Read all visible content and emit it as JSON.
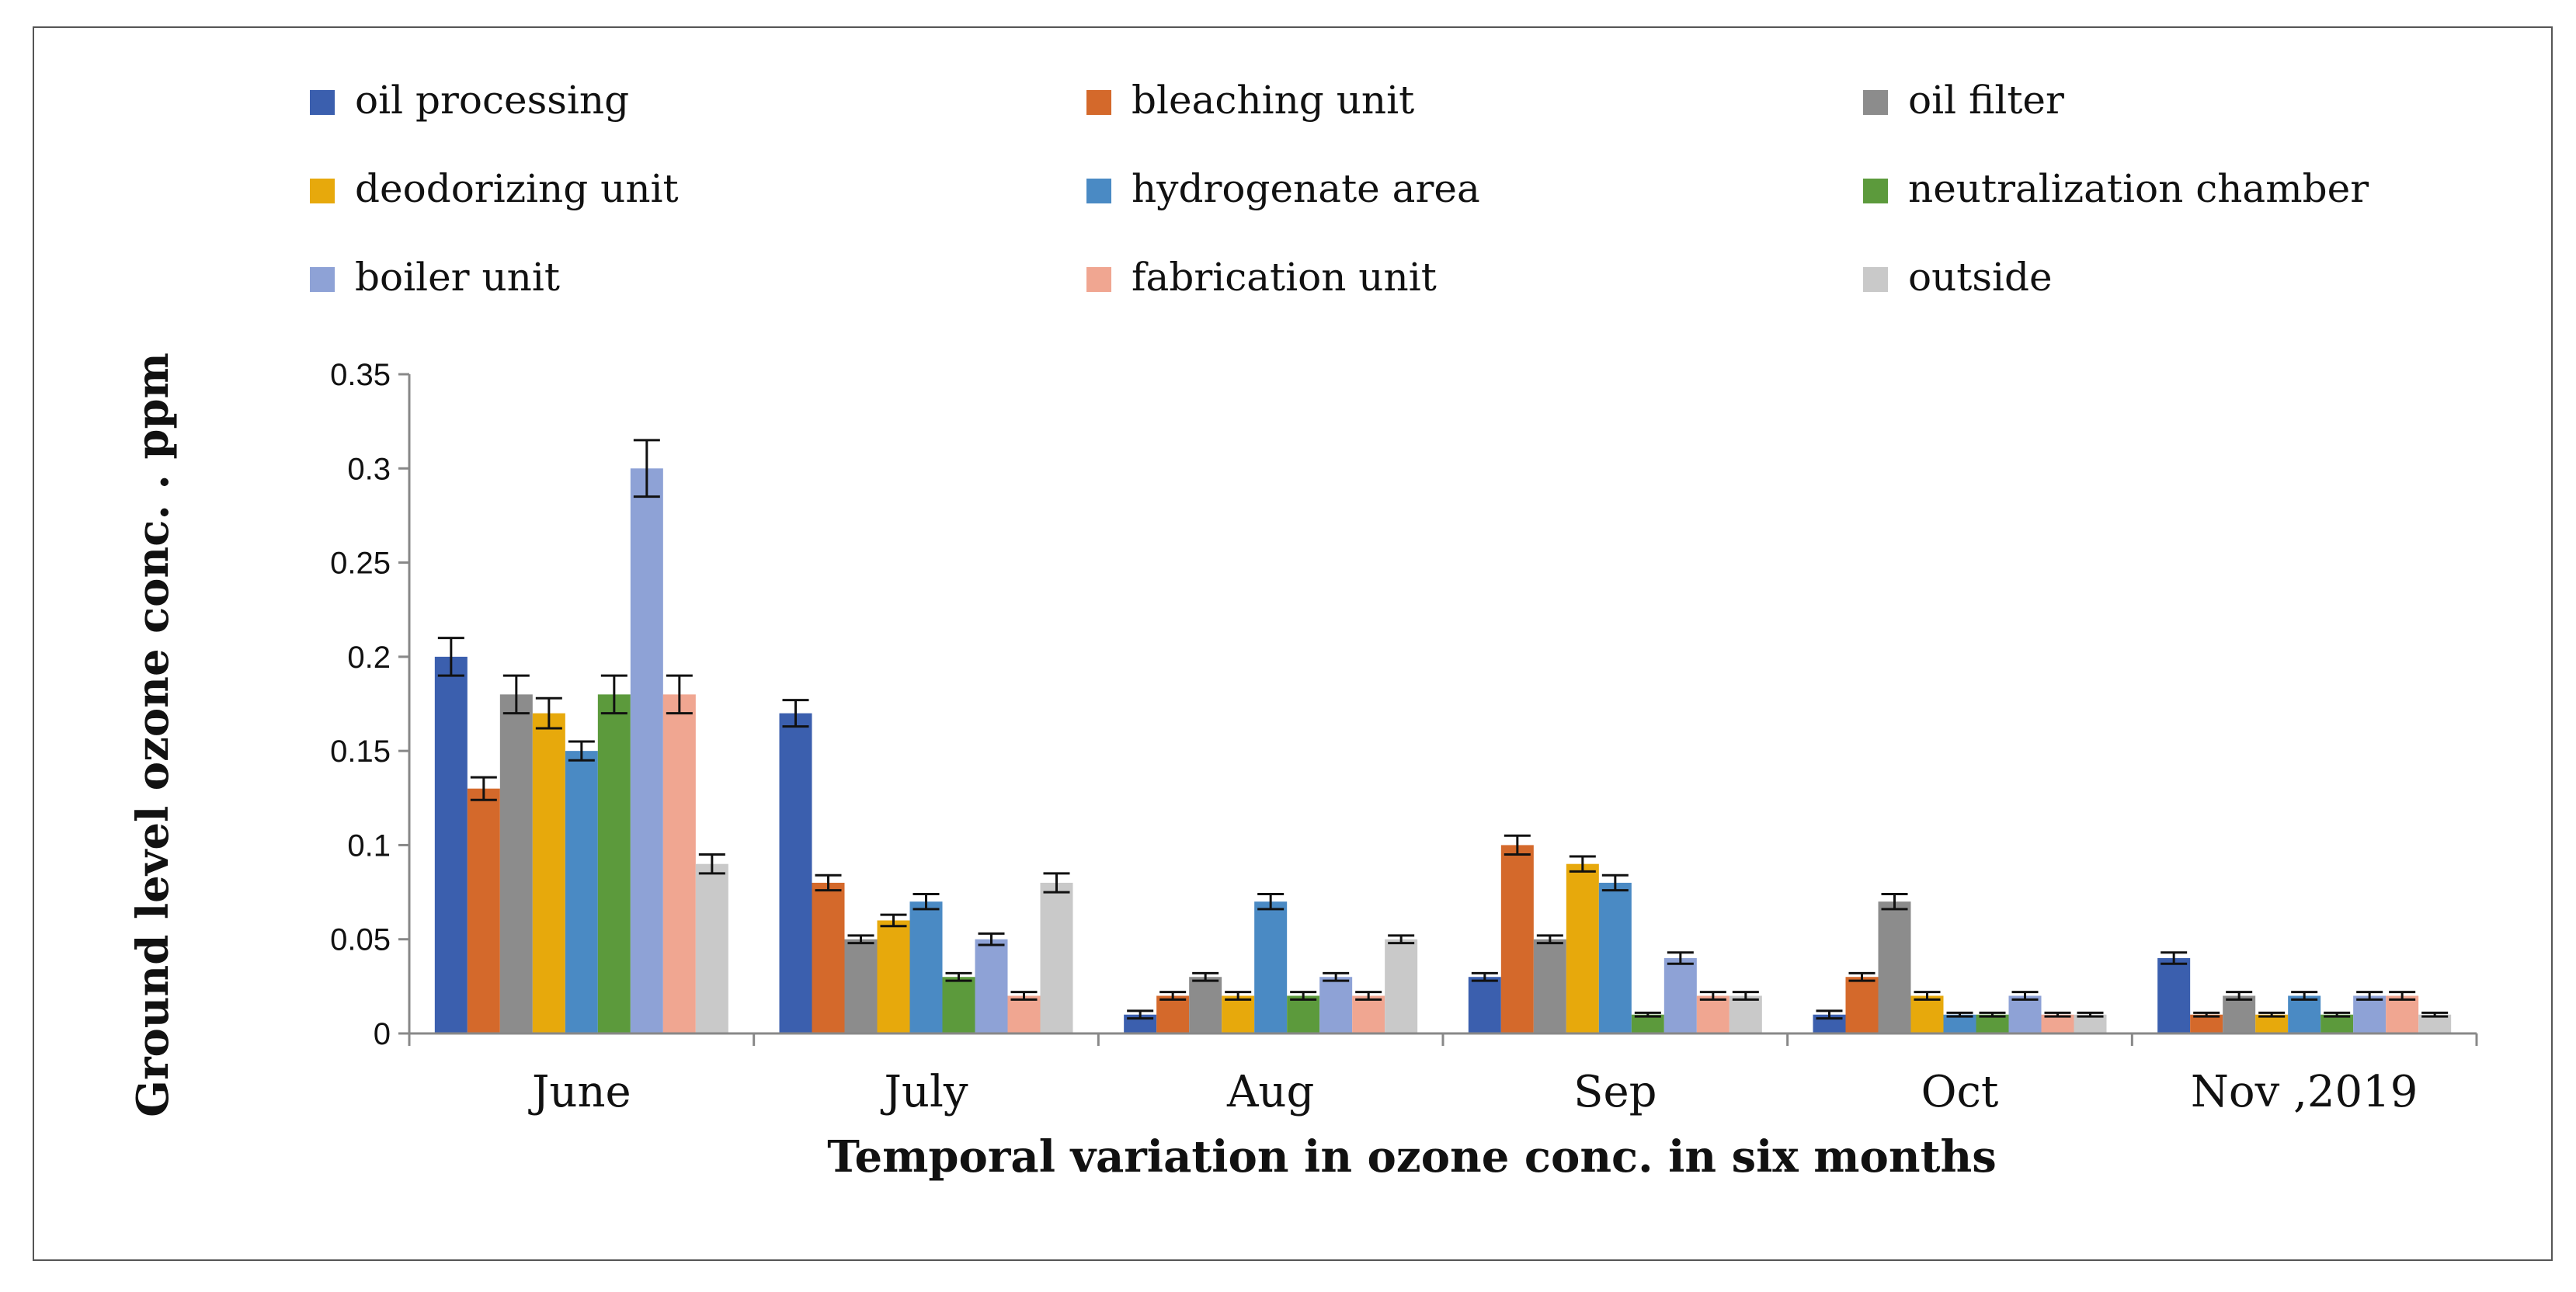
{
  "chart_data": {
    "type": "bar",
    "title": "",
    "xlabel": "Temporal variation in ozone conc. in six months",
    "ylabel": "Ground level ozone conc. . ppm",
    "ylim": [
      0,
      0.35
    ],
    "yticks": [
      "0",
      "0.05",
      "0.1",
      "0.15",
      "0.2",
      "0.25",
      "0.3",
      "0.35"
    ],
    "categories": [
      "June",
      "July",
      "Aug",
      "Sep",
      "Oct",
      "Nov ,2019"
    ],
    "legend_position": "top",
    "series": [
      {
        "name": "oil processing",
        "color": "#3b5fae",
        "values": [
          0.2,
          0.17,
          0.01,
          0.03,
          0.01,
          0.04
        ],
        "errors": [
          0.01,
          0.007,
          0.002,
          0.002,
          0.002,
          0.003
        ]
      },
      {
        "name": "bleaching unit",
        "color": "#d4692b",
        "values": [
          0.13,
          0.08,
          0.02,
          0.1,
          0.03,
          0.01
        ],
        "errors": [
          0.006,
          0.004,
          0.002,
          0.005,
          0.002,
          0.001
        ]
      },
      {
        "name": "oil filter",
        "color": "#8c8c8c",
        "values": [
          0.18,
          0.05,
          0.03,
          0.05,
          0.07,
          0.02
        ],
        "errors": [
          0.01,
          0.002,
          0.002,
          0.002,
          0.004,
          0.002
        ]
      },
      {
        "name": "deodorizing unit",
        "color": "#e7a90c",
        "values": [
          0.17,
          0.06,
          0.02,
          0.09,
          0.02,
          0.01
        ],
        "errors": [
          0.008,
          0.003,
          0.002,
          0.004,
          0.002,
          0.001
        ]
      },
      {
        "name": "hydrogenate area",
        "color": "#4a8ac4",
        "values": [
          0.15,
          0.07,
          0.07,
          0.08,
          0.01,
          0.02
        ],
        "errors": [
          0.005,
          0.004,
          0.004,
          0.004,
          0.001,
          0.002
        ]
      },
      {
        "name": "neutralization chamber",
        "color": "#5c9a3c",
        "values": [
          0.18,
          0.03,
          0.02,
          0.01,
          0.01,
          0.01
        ],
        "errors": [
          0.01,
          0.002,
          0.002,
          0.001,
          0.001,
          0.001
        ]
      },
      {
        "name": "boiler unit",
        "color": "#8ea2d6",
        "values": [
          0.3,
          0.05,
          0.03,
          0.04,
          0.02,
          0.02
        ],
        "errors": [
          0.015,
          0.003,
          0.002,
          0.003,
          0.002,
          0.002
        ]
      },
      {
        "name": "fabrication unit",
        "color": "#f0a691",
        "values": [
          0.18,
          0.02,
          0.02,
          0.02,
          0.01,
          0.02
        ],
        "errors": [
          0.01,
          0.002,
          0.002,
          0.002,
          0.001,
          0.002
        ]
      },
      {
        "name": "outside",
        "color": "#c9c9c9",
        "values": [
          0.09,
          0.08,
          0.05,
          0.02,
          0.01,
          0.01
        ],
        "errors": [
          0.005,
          0.005,
          0.002,
          0.002,
          0.001,
          0.001
        ]
      }
    ]
  }
}
